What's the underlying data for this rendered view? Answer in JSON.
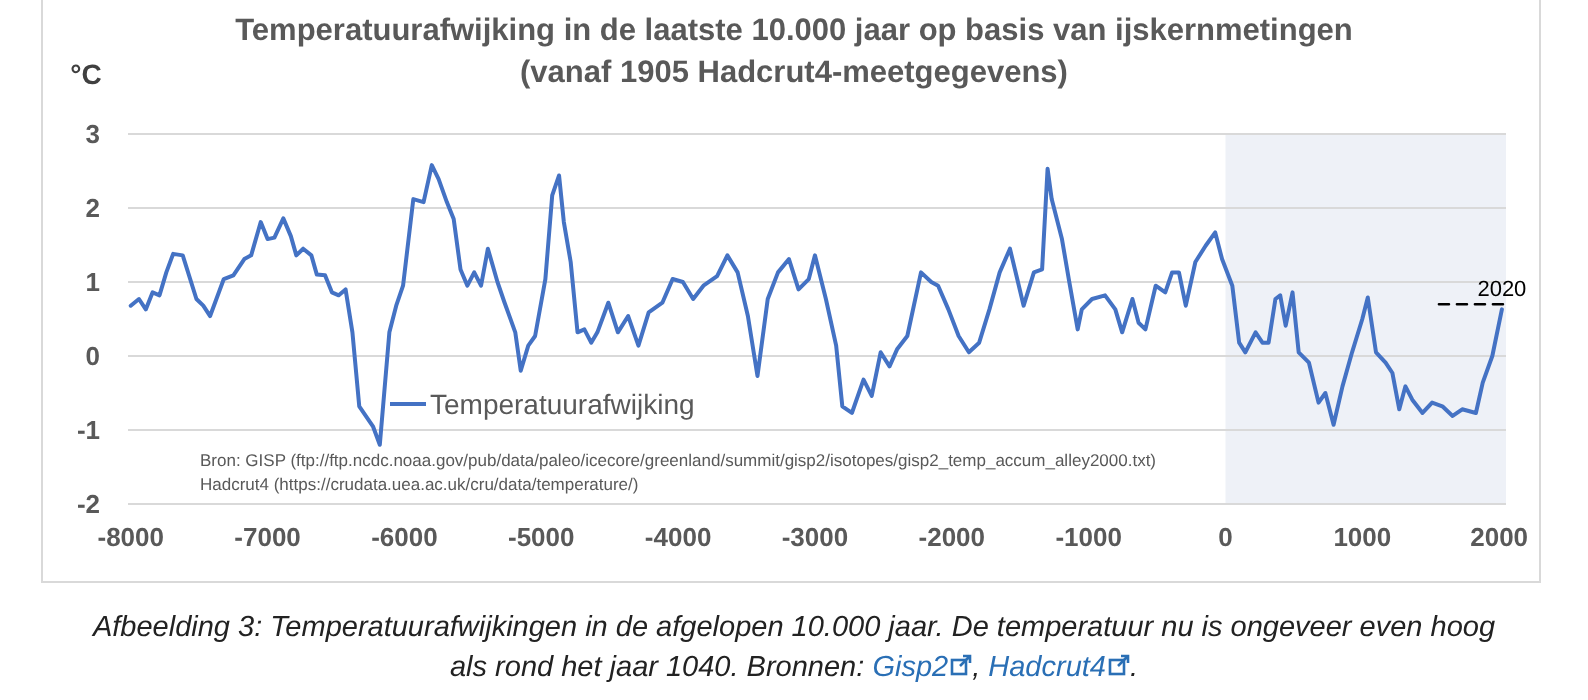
{
  "chart_data": {
    "type": "line",
    "title": "Temperatuurafwijking in de laatste 10.000 jaar op basis van ijskernmetingen",
    "subtitle": "(vanaf 1905 Hadcrut4-meetgegevens)",
    "ylabel": "°C",
    "xlim": [
      -8020,
      2050
    ],
    "xticks": [
      -8000,
      -7000,
      -6000,
      -5000,
      -4000,
      -3000,
      -2000,
      -1000,
      0,
      1000,
      2000
    ],
    "ylim": [
      -2,
      3
    ],
    "yticks": [
      -2,
      -1,
      0,
      1,
      2,
      3
    ],
    "grid": "y",
    "legend": "bottom left",
    "line_style": "solid",
    "marker": "none",
    "bands": [
      {
        "axis": "x",
        "from": 0,
        "to": 2050,
        "color": "#eef1f7"
      }
    ],
    "series": [
      {
        "name": "Temperatuurafwijking",
        "color": "#4472c4",
        "x": [
          -8000,
          -7940,
          -7890,
          -7840,
          -7790,
          -7740,
          -7690,
          -7620,
          -7520,
          -7470,
          -7420,
          -7320,
          -7250,
          -7170,
          -7120,
          -7050,
          -7000,
          -6950,
          -6885,
          -6830,
          -6790,
          -6740,
          -6680,
          -6640,
          -6580,
          -6530,
          -6480,
          -6430,
          -6380,
          -6330,
          -6230,
          -6180,
          -6110,
          -6060,
          -6010,
          -5935,
          -5860,
          -5800,
          -5750,
          -5690,
          -5640,
          -5590,
          -5540,
          -5490,
          -5440,
          -5390,
          -5320,
          -5270,
          -5190,
          -5150,
          -5095,
          -5045,
          -4970,
          -4920,
          -4870,
          -4835,
          -4785,
          -4735,
          -4685,
          -4635,
          -4590,
          -4510,
          -4440,
          -4365,
          -4290,
          -4215,
          -4115,
          -4040,
          -3965,
          -3890,
          -3815,
          -3715,
          -3640,
          -3565,
          -3490,
          -3420,
          -3345,
          -3270,
          -3190,
          -3120,
          -3045,
          -3000,
          -2920,
          -2845,
          -2800,
          -2730,
          -2645,
          -2585,
          -2520,
          -2455,
          -2400,
          -2325,
          -2225,
          -2150,
          -2100,
          -2025,
          -1950,
          -1875,
          -1800,
          -1725,
          -1650,
          -1575,
          -1475,
          -1400,
          -1340,
          -1300,
          -1270,
          -1195,
          -1145,
          -1080,
          -1050,
          -975,
          -880,
          -805,
          -755,
          -680,
          -635,
          -585,
          -510,
          -440,
          -390,
          -340,
          -290,
          -220,
          -145,
          -75,
          -25,
          50,
          100,
          145,
          220,
          270,
          315,
          365,
          400,
          440,
          490,
          535,
          610,
          680,
          730,
          790,
          855,
          925,
          1000,
          1040,
          1100,
          1170,
          1220,
          1270,
          1315,
          1365,
          1440,
          1510,
          1585,
          1660,
          1730,
          1830,
          1880,
          1950,
          2020
        ],
        "values": [
          0.68,
          0.77,
          0.63,
          0.86,
          0.82,
          1.13,
          1.38,
          1.36,
          0.77,
          0.68,
          0.54,
          1.04,
          1.09,
          1.31,
          1.36,
          1.81,
          1.58,
          1.6,
          1.86,
          1.62,
          1.36,
          1.45,
          1.36,
          1.1,
          1.09,
          0.86,
          0.82,
          0.9,
          0.32,
          -0.68,
          -0.95,
          -1.2,
          0.32,
          0.68,
          0.95,
          2.12,
          2.08,
          2.58,
          2.39,
          2.08,
          1.85,
          1.17,
          0.95,
          1.13,
          0.95,
          1.45,
          1.0,
          0.73,
          0.32,
          -0.2,
          0.14,
          0.27,
          1.04,
          2.17,
          2.44,
          1.81,
          1.27,
          0.32,
          0.36,
          0.18,
          0.32,
          0.72,
          0.32,
          0.54,
          0.14,
          0.59,
          0.72,
          1.04,
          1.0,
          0.77,
          0.95,
          1.08,
          1.36,
          1.13,
          0.54,
          -0.27,
          0.77,
          1.13,
          1.31,
          0.9,
          1.04,
          1.36,
          0.77,
          0.14,
          -0.68,
          -0.77,
          -0.32,
          -0.54,
          0.05,
          -0.14,
          0.09,
          0.27,
          1.13,
          1.0,
          0.95,
          0.63,
          0.27,
          0.05,
          0.18,
          0.63,
          1.13,
          1.45,
          0.68,
          1.13,
          1.17,
          2.53,
          2.12,
          1.58,
          1.04,
          0.36,
          0.63,
          0.77,
          0.82,
          0.63,
          0.32,
          0.77,
          0.45,
          0.36,
          0.95,
          0.86,
          1.13,
          1.13,
          0.68,
          1.27,
          1.49,
          1.67,
          1.31,
          0.95,
          0.18,
          0.05,
          0.32,
          0.18,
          0.18,
          0.77,
          0.82,
          0.41,
          0.86,
          0.05,
          -0.09,
          -0.63,
          -0.5,
          -0.93,
          -0.41,
          0.05,
          0.5,
          0.79,
          0.05,
          -0.09,
          -0.23,
          -0.72,
          -0.41,
          -0.59,
          -0.77,
          -0.63,
          -0.68,
          -0.81,
          -0.72,
          -0.77,
          -0.36,
          0.0,
          0.63
        ]
      },
      {
        "color": "#000000",
        "line_style": "dashed",
        "x": [
          1560,
          2050
        ],
        "values": [
          0.7,
          0.7
        ]
      }
    ],
    "annotations": [
      {
        "text": "2020",
        "x": 2020,
        "y": 0.7
      },
      "Bron: GISP (ftp://ftp.ncdc.noaa.gov/pub/data/paleo/icecore/greenland/summit/gisp2/isotopes/gisp2_temp_accum_alley2000.txt)",
      "Hadcrut4 (https://crudata.uea.ac.uk/cru/data/temperature/)",
      "Afbeelding 3: Temperatuurafwijkingen in de afgelopen 10.000 jaar. De temperatuur nu is ongeveer even hoog als rond het jaar 1040. Bronnen: ",
      "Gisp2",
      ", ",
      "Hadcrut4",
      "."
    ]
  }
}
